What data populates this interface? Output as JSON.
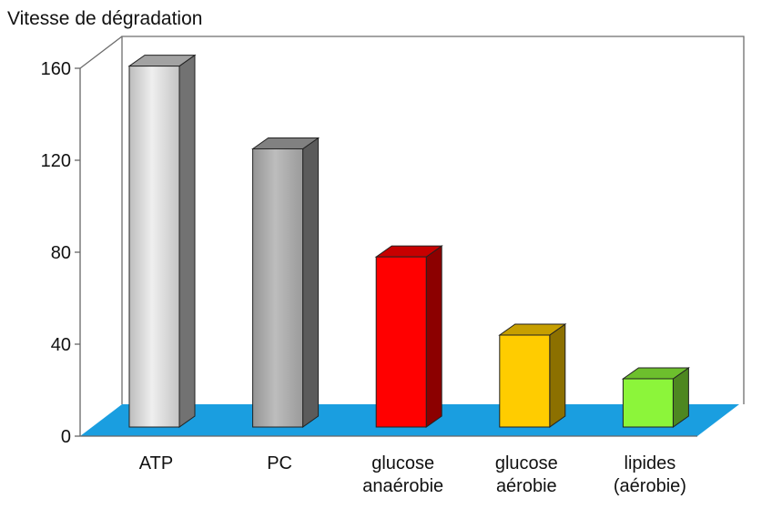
{
  "chart_data": {
    "type": "bar",
    "title": "",
    "ylabel": "Vitesse de dégradation",
    "xlabel": "",
    "ylim": [
      0,
      160
    ],
    "yticks": [
      0,
      40,
      80,
      120,
      160
    ],
    "grid": false,
    "legend": "none",
    "categories": [
      [
        "ATP"
      ],
      [
        "PC"
      ],
      [
        "glucose",
        "anaérobie"
      ],
      [
        "glucose",
        "aérobie"
      ],
      [
        "lipides",
        "(aérobie)"
      ]
    ],
    "values": [
      157,
      121,
      74,
      40,
      21
    ],
    "colors": [
      "#d0d0d0",
      "#a6a6a6",
      "#ff0000",
      "#ffcc00",
      "#8cf53a"
    ],
    "floor_color": "#1a9ee0"
  }
}
